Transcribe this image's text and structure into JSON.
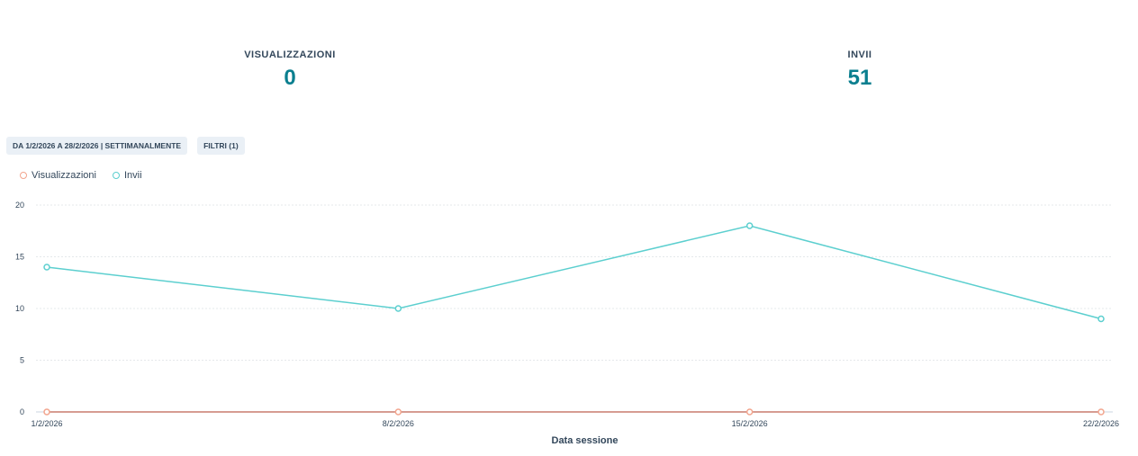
{
  "kpis": [
    {
      "label": "VISUALIZZAZIONI",
      "value": "0"
    },
    {
      "label": "INVII",
      "value": "51"
    }
  ],
  "filters": {
    "date_range_label": "DA 1/2/2026 A 28/2/2026 | SETTIMANALMENTE",
    "filters_label": "FILTRI (1)"
  },
  "colors": {
    "visualizzazioni": "#f2a58e",
    "invii": "#5ccfcf",
    "kpi_value": "#0b7f8f",
    "grid": "#e5e8eb",
    "baseline": "#c97b6e"
  },
  "chart_data": {
    "type": "line",
    "categories": [
      "1/2/2026",
      "8/2/2026",
      "15/2/2026",
      "22/2/2026"
    ],
    "series": [
      {
        "name": "Visualizzazioni",
        "values": [
          0,
          0,
          0,
          0
        ]
      },
      {
        "name": "Invii",
        "values": [
          14,
          10,
          18,
          9
        ]
      }
    ],
    "xlabel": "Data sessione",
    "ylabel": "",
    "ylim": [
      0,
      20
    ],
    "yticks": [
      0,
      5,
      10,
      15,
      20
    ],
    "grid": true,
    "legend": "top-left"
  }
}
